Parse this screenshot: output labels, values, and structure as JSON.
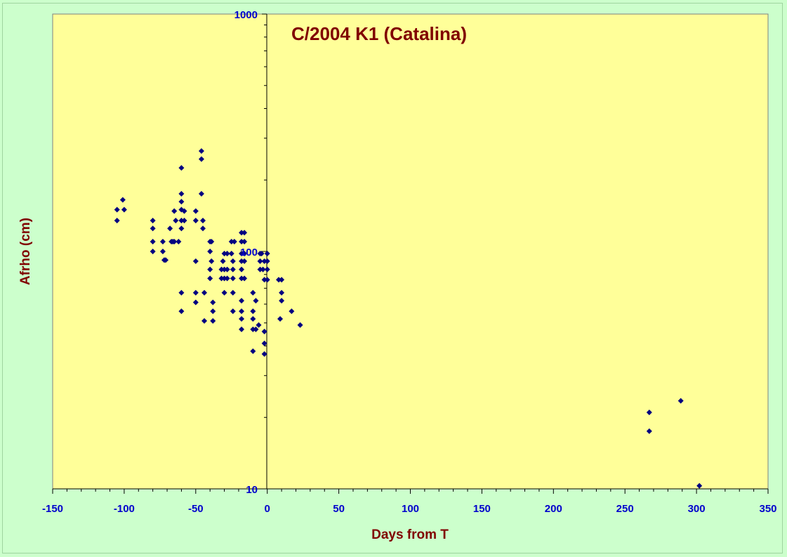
{
  "chart_data": {
    "type": "scatter",
    "title": "C/2004 K1 (Catalina)",
    "xlabel": "Days from T",
    "ylabel": "Afrho (cm)",
    "xlim": [
      -150,
      350
    ],
    "ylim": [
      10,
      1000
    ],
    "y_scale": "log",
    "x_ticks": [
      "-150",
      "-100",
      "-50",
      "0",
      "50",
      "100",
      "150",
      "200",
      "250",
      "300",
      "350"
    ],
    "y_ticks": [
      "10",
      "100",
      "1000"
    ],
    "grid": false,
    "legend": "none",
    "colors": {
      "background": "#ccffcc",
      "plot_area": "#ffff99",
      "marker": "#000080",
      "tick_labels": "#0000cc",
      "titles": "#800000"
    },
    "points": [
      [
        -105,
        150
      ],
      [
        -105,
        135
      ],
      [
        -101,
        165
      ],
      [
        -100,
        150
      ],
      [
        -80,
        135
      ],
      [
        -80,
        125
      ],
      [
        -80,
        110
      ],
      [
        -80,
        100
      ],
      [
        -73,
        110
      ],
      [
        -73,
        100
      ],
      [
        -72,
        92
      ],
      [
        -71,
        92
      ],
      [
        -68,
        125
      ],
      [
        -67,
        110
      ],
      [
        -66,
        110
      ],
      [
        -65,
        110
      ],
      [
        -65,
        148
      ],
      [
        -64,
        135
      ],
      [
        -62,
        110
      ],
      [
        -60,
        225
      ],
      [
        -60,
        175
      ],
      [
        -60,
        162
      ],
      [
        -60,
        150
      ],
      [
        -60,
        135
      ],
      [
        -60,
        125
      ],
      [
        -60,
        67
      ],
      [
        -60,
        56
      ],
      [
        -58,
        148
      ],
      [
        -58,
        135
      ],
      [
        -50,
        148
      ],
      [
        -50,
        135
      ],
      [
        -50,
        91
      ],
      [
        -50,
        67
      ],
      [
        -50,
        61
      ],
      [
        -46,
        265
      ],
      [
        -46,
        245
      ],
      [
        -46,
        175
      ],
      [
        -45,
        135
      ],
      [
        -45,
        125
      ],
      [
        -44,
        67
      ],
      [
        -44,
        51
      ],
      [
        -40,
        110
      ],
      [
        -40,
        100
      ],
      [
        -40,
        84
      ],
      [
        -40,
        77
      ],
      [
        -39,
        110
      ],
      [
        -39,
        91
      ],
      [
        -38,
        61
      ],
      [
        -38,
        56
      ],
      [
        -38,
        51
      ],
      [
        -32,
        84
      ],
      [
        -32,
        77
      ],
      [
        -31,
        91
      ],
      [
        -30,
        98
      ],
      [
        -30,
        84
      ],
      [
        -30,
        77
      ],
      [
        -30,
        67
      ],
      [
        -28,
        98
      ],
      [
        -28,
        84
      ],
      [
        -28,
        77
      ],
      [
        -25,
        110
      ],
      [
        -25,
        98
      ],
      [
        -24,
        91
      ],
      [
        -24,
        84
      ],
      [
        -24,
        77
      ],
      [
        -24,
        67
      ],
      [
        -24,
        56
      ],
      [
        -23,
        110
      ],
      [
        -18,
        120
      ],
      [
        -18,
        110
      ],
      [
        -18,
        98
      ],
      [
        -18,
        91
      ],
      [
        -18,
        84
      ],
      [
        -18,
        77
      ],
      [
        -18,
        62
      ],
      [
        -18,
        56
      ],
      [
        -18,
        52
      ],
      [
        -18,
        47
      ],
      [
        -16,
        120
      ],
      [
        -16,
        110
      ],
      [
        -16,
        98
      ],
      [
        -16,
        91
      ],
      [
        -16,
        77
      ],
      [
        -10,
        67
      ],
      [
        -10,
        56
      ],
      [
        -10,
        52
      ],
      [
        -10,
        47
      ],
      [
        -10,
        38
      ],
      [
        -8,
        62
      ],
      [
        -8,
        47
      ],
      [
        -6,
        49
      ],
      [
        -5,
        98
      ],
      [
        -5,
        91
      ],
      [
        -5,
        84
      ],
      [
        -4,
        98
      ],
      [
        -3,
        84
      ],
      [
        -2,
        91
      ],
      [
        -2,
        76
      ],
      [
        -2,
        46
      ],
      [
        -2,
        41
      ],
      [
        -2,
        37
      ],
      [
        0,
        98
      ],
      [
        0,
        91
      ],
      [
        0,
        84
      ],
      [
        0,
        76
      ],
      [
        8,
        76
      ],
      [
        9,
        52
      ],
      [
        10,
        76
      ],
      [
        10,
        67
      ],
      [
        10,
        62
      ],
      [
        17,
        56
      ],
      [
        23,
        49
      ],
      [
        267,
        21
      ],
      [
        267,
        17.5
      ],
      [
        289,
        23.5
      ],
      [
        302,
        10.3
      ]
    ]
  }
}
